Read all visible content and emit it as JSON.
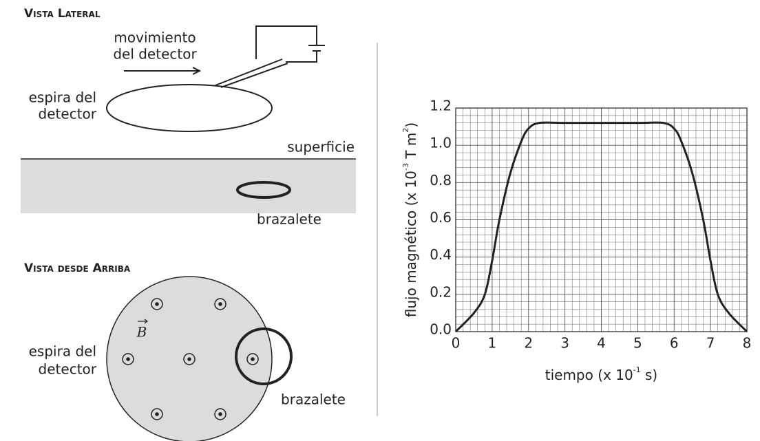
{
  "side_view": {
    "title": "Vista Lateral",
    "motion_label": [
      "movimiento",
      "del detector"
    ],
    "loop_label": [
      "espira del",
      "detector"
    ],
    "surface_label": "superficie",
    "bracelet_label": "brazalete"
  },
  "top_view": {
    "title": "Vista desde Arriba",
    "field_label": "B",
    "loop_label": [
      "espira del",
      "detector"
    ],
    "bracelet_label": "brazalete"
  },
  "chart_data": {
    "type": "line",
    "xlabel": [
      {
        "text": "tiempo (x 10"
      },
      {
        "sup": "-1"
      },
      {
        "text": " s)"
      }
    ],
    "ylabel": [
      {
        "text": "flujo magnético (x 10"
      },
      {
        "sup": "-3"
      },
      {
        "text": " T m"
      },
      {
        "sup": "2"
      },
      {
        "text": ")"
      }
    ],
    "x": [
      0,
      0.5,
      0.8,
      1.0,
      1.2,
      1.5,
      1.8,
      2.0,
      2.3,
      3,
      4,
      5,
      5.7,
      6.0,
      6.2,
      6.5,
      6.8,
      7.0,
      7.2,
      7.5,
      8
    ],
    "values": [
      0,
      0.1,
      0.2,
      0.38,
      0.6,
      0.85,
      1.02,
      1.09,
      1.12,
      1.12,
      1.12,
      1.12,
      1.12,
      1.09,
      1.02,
      0.85,
      0.6,
      0.38,
      0.2,
      0.1,
      0
    ],
    "color": "#222222",
    "xlim": [
      0,
      8
    ],
    "ylim": [
      0,
      1.2
    ],
    "xticks": [
      0,
      1,
      2,
      3,
      4,
      5,
      6,
      7,
      8
    ],
    "yticks": [
      {
        "value": 0,
        "label": "0.0"
      },
      0.2,
      0.4,
      0.6,
      0.8,
      {
        "value": 1,
        "label": "1.0"
      },
      1.2
    ],
    "grid": true
  }
}
